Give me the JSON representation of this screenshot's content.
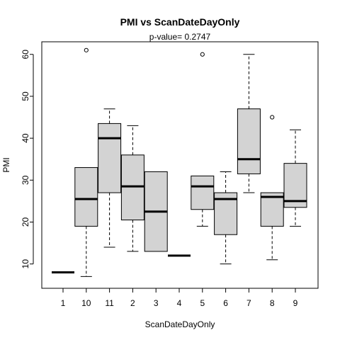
{
  "chart_data": {
    "type": "boxplot",
    "title": "PMI  vs  ScanDateDayOnly",
    "subtitle": "p-value= 0.2747",
    "xlabel": "ScanDateDayOnly",
    "ylabel": "PMI",
    "ylim": [
      4.2,
      63
    ],
    "yticks": [
      10,
      20,
      30,
      40,
      50,
      60
    ],
    "categories": [
      "1",
      "10",
      "11",
      "2",
      "3",
      "4",
      "5",
      "6",
      "7",
      "8",
      "9"
    ],
    "boxes": [
      {
        "category": "1",
        "min": 8,
        "q1": 8,
        "median": 8,
        "q3": 8,
        "max": 8,
        "outliers": []
      },
      {
        "category": "10",
        "min": 7,
        "q1": 19,
        "median": 25.5,
        "q3": 33,
        "max": 33,
        "outliers": [
          61
        ]
      },
      {
        "category": "11",
        "min": 14,
        "q1": 27,
        "median": 40,
        "q3": 43.5,
        "max": 47,
        "outliers": []
      },
      {
        "category": "2",
        "min": 13,
        "q1": 20.5,
        "median": 28.5,
        "q3": 36,
        "max": 43,
        "outliers": []
      },
      {
        "category": "3",
        "min": 13,
        "q1": 13,
        "median": 22.5,
        "q3": 32,
        "max": 32,
        "outliers": []
      },
      {
        "category": "4",
        "min": 12,
        "q1": 12,
        "median": 12,
        "q3": 12,
        "max": 12,
        "outliers": []
      },
      {
        "category": "5",
        "min": 19,
        "q1": 23,
        "median": 28.5,
        "q3": 31,
        "max": 31,
        "outliers": [
          60
        ]
      },
      {
        "category": "6",
        "min": 10,
        "q1": 17,
        "median": 25.5,
        "q3": 27,
        "max": 32,
        "outliers": []
      },
      {
        "category": "7",
        "min": 27,
        "q1": 31.5,
        "median": 35,
        "q3": 47,
        "max": 60,
        "outliers": []
      },
      {
        "category": "8",
        "min": 11,
        "q1": 19,
        "median": 26,
        "q3": 27,
        "max": 27,
        "outliers": [
          45
        ]
      },
      {
        "category": "9",
        "min": 19,
        "q1": 23.5,
        "median": 25,
        "q3": 34,
        "max": 42,
        "outliers": []
      }
    ],
    "box_fill": "#d3d3d3",
    "grid": false,
    "legend": "none"
  }
}
